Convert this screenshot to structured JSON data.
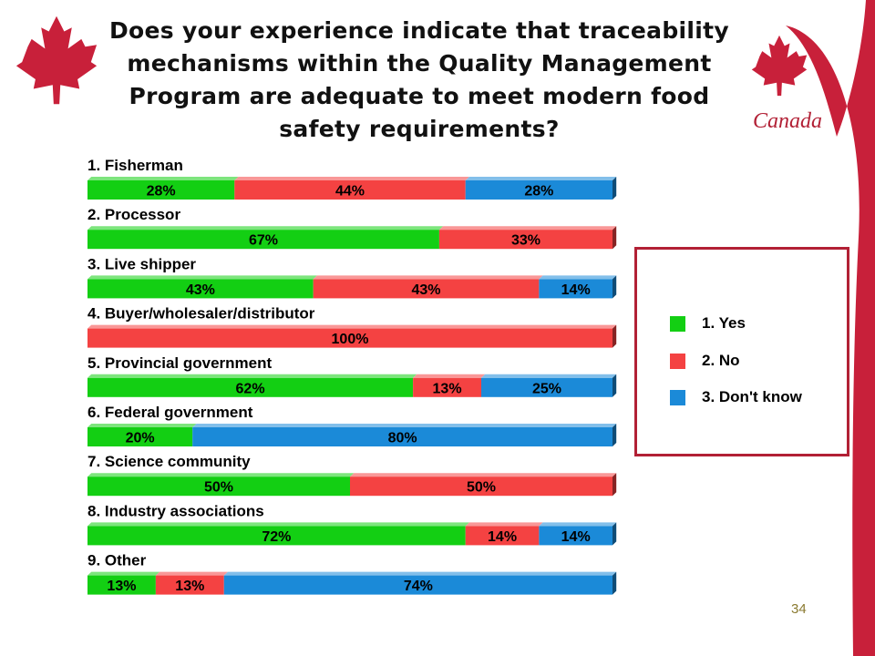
{
  "slide": {
    "title": "Does your experience indicate that traceability mechanisms within the Quality Management Program are adequate to meet modern food safety requirements?",
    "brand": "Canada",
    "page_number": "34",
    "colors": {
      "accent": "#b22035",
      "leaf": "#c8203a"
    }
  },
  "chart_data": {
    "type": "bar",
    "orientation": "horizontal-stacked-100",
    "categories": [
      "1. Fisherman",
      "2. Processor",
      "3. Live shipper",
      "4. Buyer/wholesaler/distributor",
      "5. Provincial government",
      "6. Federal government",
      "7. Science community",
      "8. Industry associations",
      "9. Other"
    ],
    "series": [
      {
        "name": "1. Yes",
        "color": "#13cf13",
        "values": [
          28,
          67,
          43,
          0,
          62,
          20,
          50,
          72,
          13
        ]
      },
      {
        "name": "2. No",
        "color": "#f44242",
        "values": [
          44,
          33,
          43,
          100,
          13,
          0,
          50,
          14,
          13
        ]
      },
      {
        "name": "3. Don't know",
        "color": "#1b8ad8",
        "values": [
          28,
          0,
          14,
          0,
          25,
          80,
          0,
          14,
          74
        ]
      }
    ],
    "value_suffix": "%",
    "legend_position": "right",
    "grid": false
  }
}
